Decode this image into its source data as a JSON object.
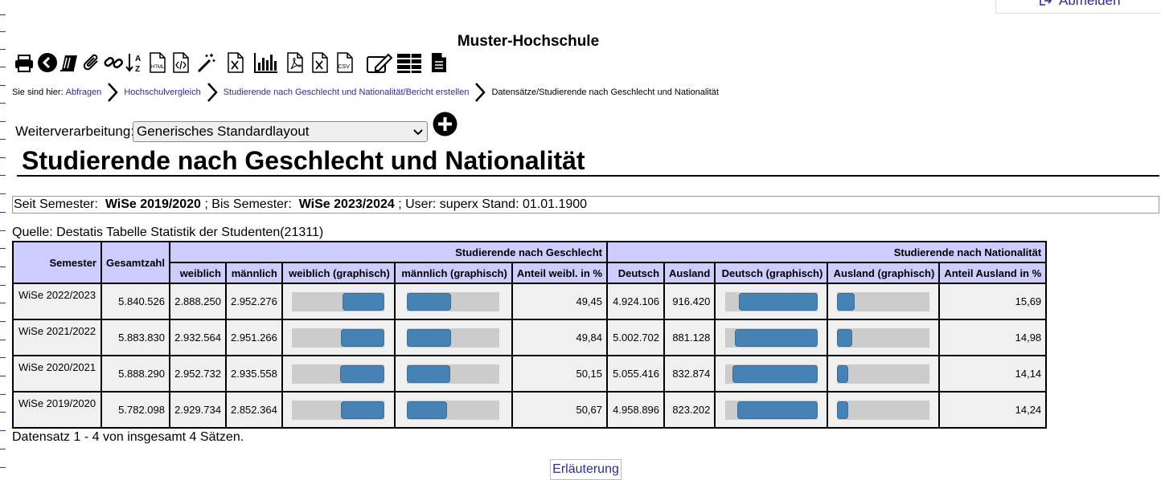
{
  "header": {
    "logout_label": "Abmelden",
    "site_title": "Muster-Hochschule"
  },
  "toolbar": {
    "icons": [
      "printer-icon",
      "back-icon",
      "books-icon",
      "paperclip-icon",
      "link-icon",
      "sort-az-icon",
      "html-file-icon",
      "code-file-icon",
      "magic-wand-icon",
      "excel-file-icon",
      "bar-chart-icon",
      "pdf-file-icon",
      "excel-file-icon",
      "csv-file-icon",
      "edit-icon",
      "table-layout-icon",
      "document-icon"
    ]
  },
  "breadcrumb": {
    "prefix": "Sie sind hier:",
    "items": [
      "Abfragen",
      "Hochschulvergleich",
      "Studierende nach Geschlecht und Nationalität/Bericht erstellen",
      "Datensätze/Studierende nach Geschlecht und Nationalität"
    ]
  },
  "processing": {
    "label": "Weiterverarbeitung:",
    "selected": "Generisches Standardlayout"
  },
  "report": {
    "title": "Studierende nach Geschlecht und Nationalität",
    "params": {
      "from_label": "Seit Semester:",
      "from_value": "WiSe 2019/2020",
      "to_label": "; Bis Semester:",
      "to_value": "WiSe 2023/2024",
      "rest": "; User: superx  Stand: 01.01.1900"
    },
    "source": "Quelle: Destatis Tabelle Statistik der Studenten(21311)"
  },
  "table": {
    "group_headers": {
      "semester": "Semester",
      "total": "Gesamtzahl",
      "gender": "Studierende nach Geschlecht",
      "nationality": "Studierende nach Nationalität"
    },
    "columns": [
      "weiblich",
      "männlich",
      "weiblich  (graphisch)",
      "männlich  (graphisch)",
      "Anteil weibl. in %",
      "Deutsch",
      "Ausland",
      "Deutsch  (graphisch)",
      "Ausland  (graphisch)",
      "Anteil Ausland in %"
    ],
    "rows": [
      {
        "semester": "WiSe 2022/2023",
        "total": "5.840.526",
        "female": "2.888.250",
        "male": "2.952.276",
        "female_pct": "49,45",
        "german": "4.924.106",
        "foreign": "916.420",
        "foreign_pct": "15,69"
      },
      {
        "semester": "WiSe 2021/2022",
        "total": "5.883.830",
        "female": "2.932.564",
        "male": "2.951.266",
        "female_pct": "49,84",
        "german": "5.002.702",
        "foreign": "881.128",
        "foreign_pct": "14,98"
      },
      {
        "semester": "WiSe 2020/2021",
        "total": "5.888.290",
        "female": "2.952.732",
        "male": "2.935.558",
        "female_pct": "50,15",
        "german": "5.055.416",
        "foreign": "832.874",
        "foreign_pct": "14,14"
      },
      {
        "semester": "WiSe 2019/2020",
        "total": "5.782.098",
        "female": "2.929.734",
        "male": "2.852.364",
        "female_pct": "50,67",
        "german": "4.958.896",
        "foreign": "823.202",
        "foreign_pct": "14,24"
      }
    ],
    "bar_colors": {
      "fill": "#4682b4",
      "track": "#cccccc"
    }
  },
  "footer": {
    "records_text": "Datensatz 1 - 4 von insgesamt 4 Sätzen.",
    "explain_label": "Erläuterung"
  }
}
